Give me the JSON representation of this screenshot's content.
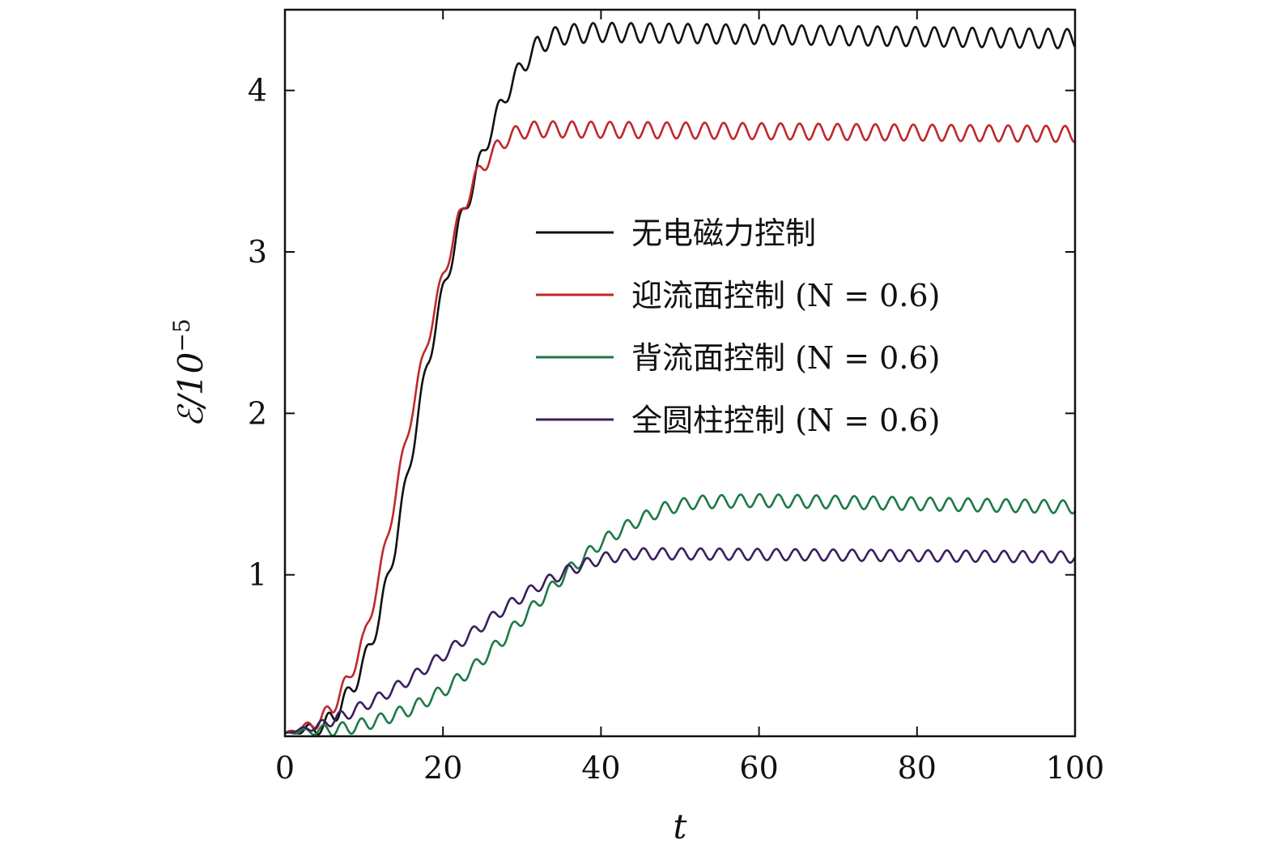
{
  "chart_data": {
    "type": "line",
    "xlabel": "t",
    "ylabel": "ℰ/10",
    "ylabel_exponent": "−5",
    "xlim": [
      0,
      100
    ],
    "ylim": [
      0,
      4.5
    ],
    "x_ticks": [
      0,
      20,
      40,
      60,
      80,
      100
    ],
    "x_tick_labels": [
      "0",
      "20",
      "40",
      "60",
      "80",
      "100"
    ],
    "y_ticks": [
      1,
      2,
      3,
      4
    ],
    "y_tick_labels": [
      "1",
      "2",
      "3",
      "4"
    ],
    "grid": false,
    "legend_position": "center-right",
    "oscillation_period": 2.4,
    "series": [
      {
        "name": "无电磁力控制",
        "color": "#111111",
        "points": [
          [
            0,
            0.02
          ],
          [
            5,
            0.06
          ],
          [
            8,
            0.25
          ],
          [
            10,
            0.45
          ],
          [
            12,
            0.75
          ],
          [
            14,
            1.2
          ],
          [
            16,
            1.75
          ],
          [
            18,
            2.3
          ],
          [
            20,
            2.75
          ],
          [
            22,
            3.15
          ],
          [
            24,
            3.45
          ],
          [
            26,
            3.75
          ],
          [
            28,
            3.98
          ],
          [
            30,
            4.15
          ],
          [
            32,
            4.28
          ],
          [
            34,
            4.33
          ],
          [
            36,
            4.35
          ],
          [
            40,
            4.36
          ],
          [
            100,
            4.32
          ]
        ],
        "amplitude": 0.06
      },
      {
        "name": "迎流面控制 (N = 0.6)",
        "color": "#c0282c",
        "points": [
          [
            0,
            0.02
          ],
          [
            4,
            0.08
          ],
          [
            6,
            0.18
          ],
          [
            8,
            0.35
          ],
          [
            10,
            0.6
          ],
          [
            12,
            1.0
          ],
          [
            14,
            1.5
          ],
          [
            16,
            2.0
          ],
          [
            18,
            2.45
          ],
          [
            20,
            2.85
          ],
          [
            22,
            3.2
          ],
          [
            24,
            3.45
          ],
          [
            26,
            3.6
          ],
          [
            28,
            3.7
          ],
          [
            30,
            3.75
          ],
          [
            32,
            3.76
          ],
          [
            100,
            3.73
          ]
        ],
        "amplitude": 0.05
      },
      {
        "name": "背流面控制 (N = 0.6)",
        "color": "#1d7a45",
        "points": [
          [
            0,
            0.02
          ],
          [
            8,
            0.05
          ],
          [
            12,
            0.1
          ],
          [
            16,
            0.17
          ],
          [
            20,
            0.28
          ],
          [
            24,
            0.43
          ],
          [
            28,
            0.62
          ],
          [
            32,
            0.83
          ],
          [
            36,
            1.03
          ],
          [
            40,
            1.2
          ],
          [
            44,
            1.32
          ],
          [
            48,
            1.41
          ],
          [
            52,
            1.45
          ],
          [
            60,
            1.46
          ],
          [
            100,
            1.42
          ]
        ],
        "amplitude": 0.04
      },
      {
        "name": "全圆柱控制 (N = 0.6)",
        "color": "#3a1f5e",
        "points": [
          [
            0,
            0.02
          ],
          [
            4,
            0.06
          ],
          [
            8,
            0.14
          ],
          [
            12,
            0.24
          ],
          [
            16,
            0.36
          ],
          [
            20,
            0.5
          ],
          [
            24,
            0.65
          ],
          [
            28,
            0.8
          ],
          [
            32,
            0.93
          ],
          [
            36,
            1.03
          ],
          [
            40,
            1.1
          ],
          [
            44,
            1.13
          ],
          [
            50,
            1.13
          ],
          [
            100,
            1.11
          ]
        ],
        "amplitude": 0.035
      }
    ]
  }
}
